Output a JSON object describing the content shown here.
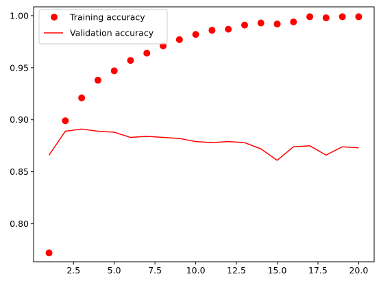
{
  "chart_data": {
    "type": "line",
    "title": "",
    "xlabel": "",
    "ylabel": "",
    "xlim": [
      0.05,
      20.95
    ],
    "ylim": [
      0.7635,
      1.0085
    ],
    "x_ticks": [
      2.5,
      5.0,
      7.5,
      10.0,
      12.5,
      15.0,
      17.5,
      20.0
    ],
    "x_tick_labels": [
      "2.5",
      "5.0",
      "7.5",
      "10.0",
      "12.5",
      "15.0",
      "17.5",
      "20.0"
    ],
    "y_ticks": [
      0.8,
      0.85,
      0.9,
      0.95,
      1.0
    ],
    "y_tick_labels": [
      "0.80",
      "0.85",
      "0.90",
      "0.95",
      "1.00"
    ],
    "grid": false,
    "legend_position": "top-left",
    "x": [
      1,
      2,
      3,
      4,
      5,
      6,
      7,
      8,
      9,
      10,
      11,
      12,
      13,
      14,
      15,
      16,
      17,
      18,
      19,
      20
    ],
    "series": [
      {
        "name": "Training accuracy",
        "style": "scatter",
        "color": "#ff0000",
        "values": [
          0.772,
          0.899,
          0.921,
          0.938,
          0.947,
          0.957,
          0.964,
          0.971,
          0.977,
          0.982,
          0.986,
          0.987,
          0.991,
          0.993,
          0.992,
          0.994,
          0.999,
          0.998,
          0.999,
          0.999
        ]
      },
      {
        "name": "Validation accuracy",
        "style": "line",
        "color": "#ff0000",
        "values": [
          0.866,
          0.889,
          0.891,
          0.889,
          0.888,
          0.883,
          0.884,
          0.883,
          0.882,
          0.879,
          0.878,
          0.879,
          0.878,
          0.872,
          0.861,
          0.874,
          0.875,
          0.866,
          0.874,
          0.873
        ]
      }
    ]
  }
}
